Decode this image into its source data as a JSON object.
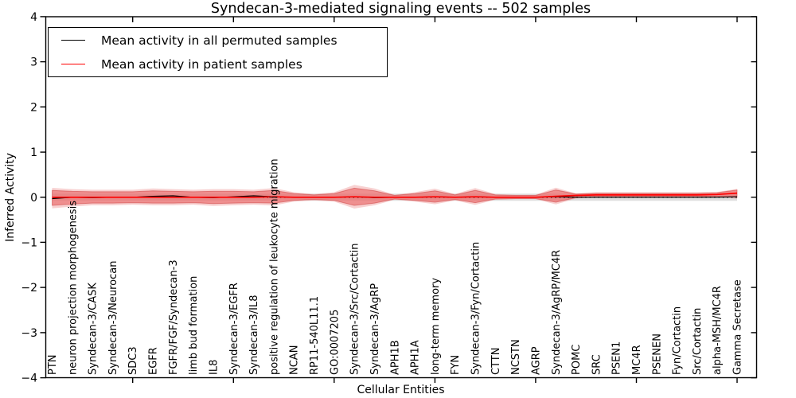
{
  "chart_data": {
    "type": "line",
    "title": "Syndecan-3-mediated signaling events -- 502 samples",
    "xlabel": "Cellular Entities",
    "ylabel": "Inferred Activity",
    "ylim": [
      -4,
      4
    ],
    "yticks": [
      -4,
      -3,
      -2,
      -1,
      0,
      1,
      2,
      3,
      4
    ],
    "grid": false,
    "legend_position": "upper left",
    "legend": [
      {
        "label": "Mean activity in all permuted samples",
        "color": "#000000"
      },
      {
        "label": "Mean activity in patient samples",
        "color": "#ff0000"
      }
    ],
    "x_major_tick_start": 4,
    "x_major_tick_every": 5,
    "zero_reference_line": {
      "value": 0,
      "style": "dotted",
      "color": "#000000"
    },
    "categories": [
      "PTN",
      "neuron projection morphogenesis",
      "Syndecan-3/CASK",
      "Syndecan-3/Neurocan",
      "SDC3",
      "EGFR",
      "FGFR/FGF/Syndecan-3",
      "limb bud formation",
      "IL8",
      "Syndecan-3/EGFR",
      "Syndecan-3/IL8",
      "positive regulation of leukocyte migration",
      "NCAN",
      "RP11-540L11.1",
      "GO:0007205",
      "Syndecan-3/Src/Cortactin",
      "Syndecan-3/AgRP",
      "APH1B",
      "APH1A",
      "long-term memory",
      "FYN",
      "Syndecan-3/Fyn/Cortactin",
      "CTTN",
      "NCSTN",
      "AGRP",
      "Syndecan-3/AgRP/MC4R",
      "POMC",
      "SRC",
      "PSEN1",
      "MC4R",
      "PSENEN",
      "Fyn/Cortactin",
      "Src/Cortactin",
      "alpha-MSH/MC4R",
      "Gamma Secretase"
    ],
    "series": [
      {
        "name": "Mean activity in all permuted samples",
        "color": "#000000",
        "style": "solid",
        "values": [
          -0.03,
          0.0,
          -0.01,
          0.0,
          0.0,
          0.02,
          0.03,
          0.0,
          -0.01,
          0.01,
          0.03,
          0.01,
          0.0,
          0.0,
          0.0,
          0.01,
          -0.01,
          0.0,
          0.0,
          0.01,
          0.0,
          0.01,
          0.0,
          0.0,
          0.0,
          0.01,
          0.0,
          0.0,
          0.0,
          0.0,
          0.0,
          0.0,
          0.0,
          0.0,
          0.01
        ]
      },
      {
        "name": "Mean activity in patient samples",
        "color": "#ff0000",
        "style": "solid",
        "values": [
          0.0,
          0.0,
          0.0,
          0.0,
          0.0,
          0.0,
          0.0,
          0.0,
          0.0,
          0.0,
          0.0,
          0.01,
          0.0,
          0.0,
          0.0,
          0.01,
          0.0,
          0.0,
          0.0,
          0.01,
          0.0,
          0.01,
          0.0,
          0.0,
          0.0,
          0.02,
          0.04,
          0.05,
          0.05,
          0.05,
          0.05,
          0.05,
          0.05,
          0.06,
          0.09
        ]
      }
    ],
    "bands": [
      {
        "name": "permuted-sample-spread",
        "color": "#dcdcdc",
        "upper": 0.08,
        "lower": -0.08
      },
      {
        "name": "patient-sample-spread",
        "color": "#e85a5a",
        "halo_color": "#f2a3a3",
        "upper": [
          0.15,
          0.13,
          0.12,
          0.12,
          0.12,
          0.14,
          0.13,
          0.12,
          0.13,
          0.13,
          0.12,
          0.15,
          0.08,
          0.05,
          0.08,
          0.2,
          0.14,
          0.04,
          0.08,
          0.14,
          0.05,
          0.15,
          0.05,
          0.04,
          0.04,
          0.16,
          0.07,
          0.09,
          0.09,
          0.09,
          0.09,
          0.09,
          0.09,
          0.1,
          0.16
        ],
        "lower": [
          -0.18,
          -0.15,
          -0.13,
          -0.13,
          -0.12,
          -0.13,
          -0.13,
          -0.12,
          -0.14,
          -0.13,
          -0.12,
          -0.13,
          -0.07,
          -0.05,
          -0.07,
          -0.18,
          -0.13,
          -0.04,
          -0.07,
          -0.11,
          -0.05,
          -0.12,
          -0.04,
          -0.03,
          -0.03,
          -0.11,
          -0.01,
          0.01,
          0.01,
          0.01,
          0.01,
          0.01,
          0.01,
          0.02,
          0.0
        ]
      }
    ]
  }
}
